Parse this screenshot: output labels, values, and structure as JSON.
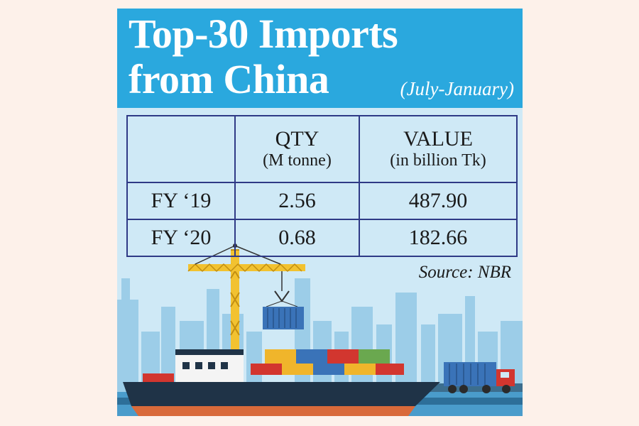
{
  "title": {
    "line1": "Top-30 Imports",
    "line2": "from China",
    "period": "(July-January)"
  },
  "table": {
    "headers": [
      {
        "main": "",
        "sub": ""
      },
      {
        "main": "QTY",
        "sub": "(M tonne)"
      },
      {
        "main": "VALUE",
        "sub": "(in billion Tk)"
      }
    ],
    "rows": [
      {
        "label": "FY ‘19",
        "qty": "2.56",
        "value": "487.90"
      },
      {
        "label": "FY ‘20",
        "qty": "0.68",
        "value": "182.66"
      }
    ]
  },
  "source": "Source: NBR",
  "colors": {
    "header_bg": "#2aa8de",
    "card_bg": "#cfe9f6",
    "page_bg": "#fdf1ea",
    "table_border": "#2f3a86",
    "crane": "#f2c230",
    "ship_hull": "#1f3347"
  },
  "illustration": {
    "icons": [
      "harbor-crane-icon",
      "cargo-ship-icon",
      "container-truck-icon",
      "city-skyline-icon"
    ]
  }
}
